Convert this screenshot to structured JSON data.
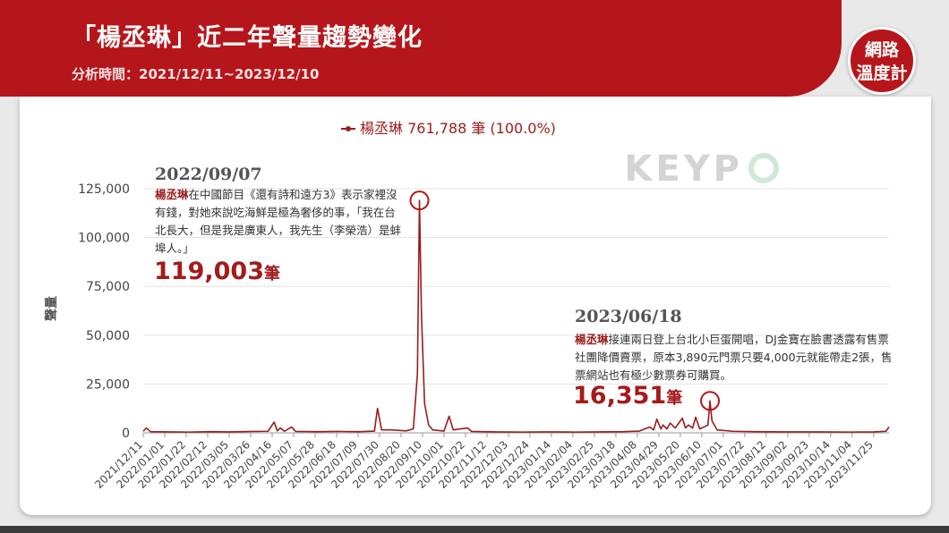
{
  "chart_data": {
    "type": "line",
    "title": "「楊丞琳」近二年聲量趨勢變化",
    "subtitle": "分析時間：2021/12/11~2023/12/10",
    "logo": [
      "網路",
      "溫度計"
    ],
    "watermark": "KEYP",
    "legend_label": "楊丞琳 761,788 筆 (100.0%)",
    "y_label": "聲量",
    "series": [
      {
        "name": "楊丞琳",
        "color": "#9b1c1c",
        "x": [
          "2021/12/11",
          "2021/12/14",
          "2021/12/18",
          "2022/01/05",
          "2022/01/25",
          "2022/02/15",
          "2022/03/05",
          "2022/03/28",
          "2022/04/12",
          "2022/04/18",
          "2022/04/21",
          "2022/04/24",
          "2022/04/28",
          "2022/05/05",
          "2022/05/09",
          "2022/05/30",
          "2022/06/20",
          "2022/07/10",
          "2022/07/25",
          "2022/07/28",
          "2022/08/01",
          "2022/08/10",
          "2022/08/25",
          "2022/09/01",
          "2022/09/05",
          "2022/09/07",
          "2022/09/09",
          "2022/09/12",
          "2022/09/16",
          "2022/09/20",
          "2022/10/01",
          "2022/10/06",
          "2022/10/10",
          "2022/10/24",
          "2022/10/28",
          "2022/11/20",
          "2022/12/15",
          "2023/01/10",
          "2023/02/05",
          "2023/03/01",
          "2023/03/25",
          "2023/04/10",
          "2023/04/20",
          "2023/04/24",
          "2023/04/27",
          "2023/05/01",
          "2023/05/03",
          "2023/05/07",
          "2023/05/10",
          "2023/05/15",
          "2023/05/22",
          "2023/05/25",
          "2023/05/28",
          "2023/06/01",
          "2023/06/04",
          "2023/06/08",
          "2023/06/12",
          "2023/06/16",
          "2023/06/18",
          "2023/06/20",
          "2023/06/25",
          "2023/07/10",
          "2023/08/01",
          "2023/09/01",
          "2023/10/01",
          "2023/11/01",
          "2023/11/25",
          "2023/12/07",
          "2023/12/10"
        ],
        "values": [
          800,
          2500,
          600,
          500,
          400,
          600,
          500,
          700,
          800,
          5500,
          1000,
          2500,
          800,
          3000,
          700,
          600,
          700,
          600,
          900,
          12500,
          1500,
          1500,
          1000,
          2000,
          30000,
          119003,
          60000,
          15000,
          4000,
          1500,
          900,
          8500,
          1500,
          2500,
          700,
          500,
          400,
          500,
          400,
          500,
          600,
          900,
          3000,
          1500,
          7000,
          2000,
          4000,
          2000,
          5000,
          2500,
          7500,
          2500,
          4000,
          2500,
          8000,
          2000,
          3000,
          4000,
          16351,
          6000,
          1500,
          800,
          600,
          500,
          500,
          400,
          500,
          800,
          3000
        ]
      }
    ],
    "xlim": [
      "2021/12/11",
      "2023/12/10"
    ],
    "xticks": [
      "2021/12/11",
      "2022/01/01",
      "2022/01/22",
      "2022/02/12",
      "2022/03/05",
      "2022/03/26",
      "2022/04/16",
      "2022/05/07",
      "2022/05/28",
      "2022/06/18",
      "2022/07/09",
      "2022/07/30",
      "2022/08/20",
      "2022/09/10",
      "2022/10/01",
      "2022/10/22",
      "2022/11/12",
      "2022/12/03",
      "2022/12/24",
      "2023/01/14",
      "2023/02/04",
      "2023/02/25",
      "2023/03/18",
      "2023/04/08",
      "2023/04/29",
      "2023/05/20",
      "2023/06/10",
      "2023/07/01",
      "2023/07/22",
      "2023/08/12",
      "2023/09/02",
      "2023/09/23",
      "2023/10/14",
      "2023/11/04",
      "2023/11/25"
    ],
    "ylim": [
      0,
      125000
    ],
    "yticks": [
      0,
      {
        "value": 25000,
        "label": "25,000"
      },
      {
        "value": 50000,
        "label": "50,000"
      },
      {
        "value": 75000,
        "label": "75,000"
      },
      {
        "value": 100000,
        "label": "100,000"
      },
      {
        "value": 125000,
        "label": "125,000"
      }
    ],
    "annotations": [
      {
        "date": "2022/09/07",
        "highlight": "楊丞琳",
        "text": "在中國節目《還有詩和遠方3》表示家裡沒有錢，對她來說吃海鮮是極為奢侈的事，「我在台北長大，但是我是廣東人，我先生（李榮浩）是蚌埠人。」",
        "value": 119003,
        "value_label": "119,003",
        "unit": "筆"
      },
      {
        "date": "2023/06/18",
        "highlight": "楊丞琳",
        "text": "接連兩日登上台北小巨蛋開唱，DJ金寶在臉書透露有售票社團降價賣票，原本3,890元門票只要4,000元就能帶走2張，售票網站也有極少數票券可購買。",
        "value": 16351,
        "value_label": "16,351",
        "unit": "筆"
      }
    ]
  }
}
